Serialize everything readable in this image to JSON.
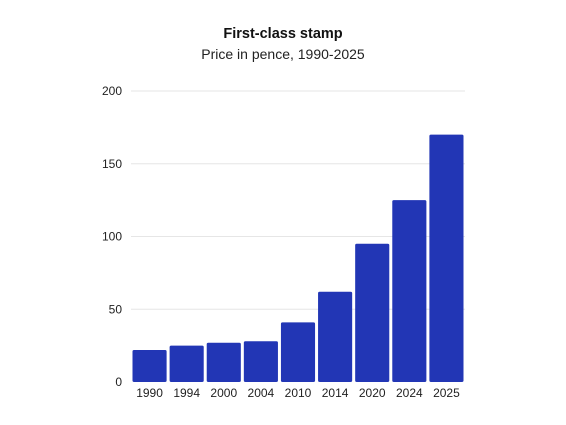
{
  "chart_data": {
    "type": "bar",
    "title": "First-class stamp",
    "subtitle": "Price in pence, 1990-2025",
    "xlabel": "",
    "ylabel": "",
    "categories": [
      "1990",
      "1994",
      "2000",
      "2004",
      "2010",
      "2014",
      "2020",
      "2024",
      "2025"
    ],
    "values": [
      22,
      25,
      27,
      28,
      41,
      62,
      95,
      125,
      170
    ],
    "ylim": [
      0,
      200
    ],
    "yticks": [
      0,
      50,
      100,
      150,
      200
    ],
    "grid": true,
    "legend": "none",
    "colors": {
      "bar": "#2236b5",
      "grid": "#e6e6e6",
      "text": "#111111"
    }
  }
}
